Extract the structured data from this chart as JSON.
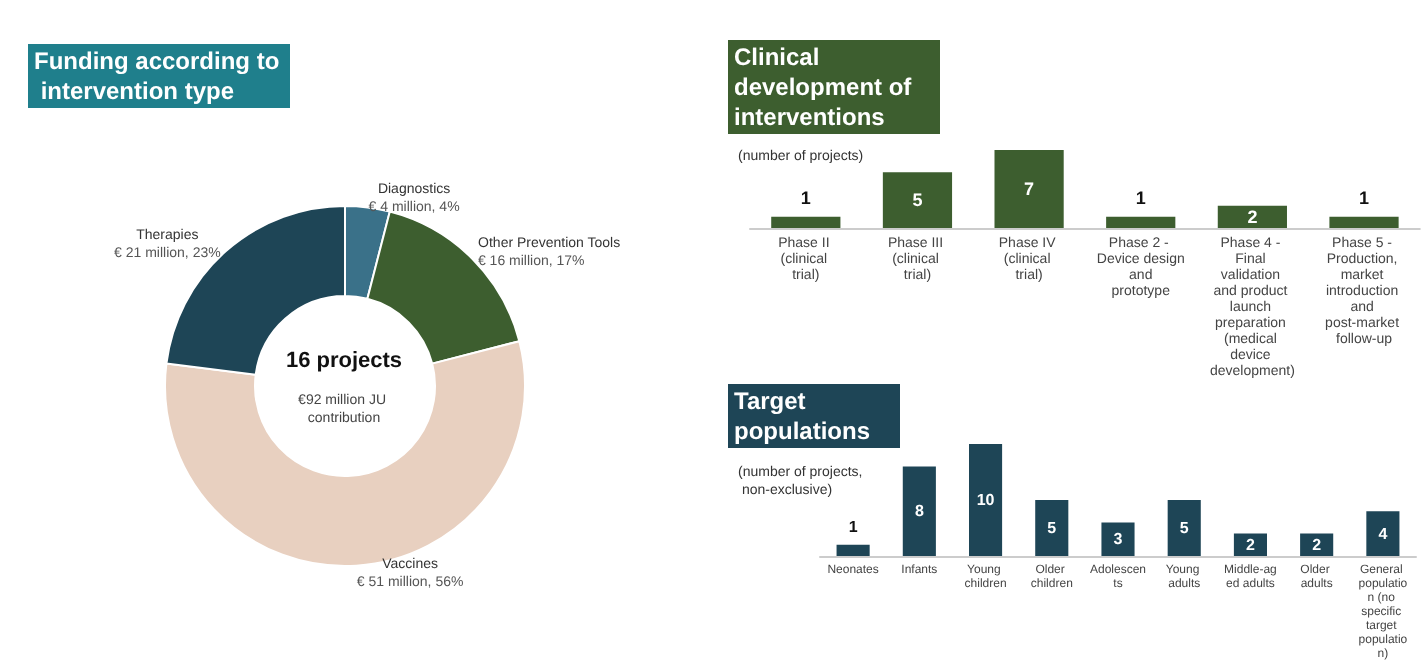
{
  "chart_data": [
    {
      "type": "donut",
      "title": "Funding according to intervention type",
      "categories": [
        "Diagnostics",
        "Other Prevention Tools",
        "Vaccines",
        "Therapies"
      ],
      "values": [
        4,
        17,
        56,
        23
      ],
      "colors": [
        "#3a7189",
        "#3d5e2f",
        "#e8d0c0",
        "#1e4556"
      ],
      "value_labels": [
        "€ 4 million, 4%",
        "€ 16 million, 17%",
        "€ 51 million, 56%",
        "€ 21 million, 23%"
      ],
      "annotations": [
        "16 projects",
        "€92 million JU contribution"
      ],
      "legend": false
    },
    {
      "type": "bar",
      "title": "Clinical development of interventions",
      "subtitle": "(number of projects)",
      "categories": [
        "Phase II (clinical trial)",
        "Phase III (clinical trial)",
        "Phase IV (clinical trial)",
        "Phase 2 - Device design and prototype",
        "Phase 4 - Final validation and product launch preparation (medical device development)",
        "Phase 5 - Production, market introduction and post-market follow-up"
      ],
      "series": [
        {
          "color": "#3d5e2f",
          "values": [
            1,
            5,
            7,
            1,
            2,
            1
          ]
        }
      ],
      "data_labels": true,
      "tick_labels": "x",
      "grid": false,
      "legend": false
    },
    {
      "type": "bar",
      "title": "Target populations",
      "subtitle": "(number of projects, non-exclusive)",
      "categories": [
        "Neonates",
        "Infants",
        "Young children",
        "Older children",
        "Adolescents",
        "Young adults",
        "Middle-aged adults",
        "Older adults",
        "General population (no specific target population)"
      ],
      "series": [
        {
          "color": "#1e4556",
          "values": [
            1,
            8,
            10,
            5,
            3,
            5,
            2,
            2,
            4
          ]
        }
      ],
      "data_labels": true,
      "tick_labels": "x",
      "grid": false,
      "legend": false
    }
  ]
}
